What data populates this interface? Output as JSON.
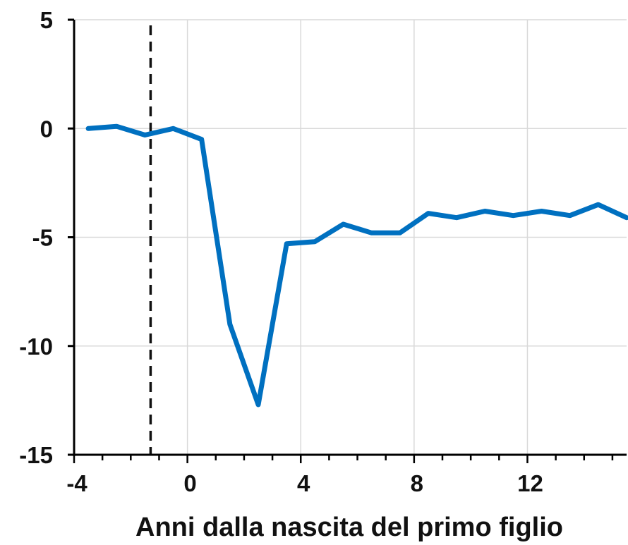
{
  "chart_data": {
    "type": "line",
    "title": "",
    "xlabel": "Anni dalla nascita del primo figlio",
    "ylabel": "",
    "xlim": [
      -4,
      15.5
    ],
    "ylim": [
      -15,
      5
    ],
    "x_ticks": [
      -4,
      0,
      4,
      8,
      12
    ],
    "y_ticks": [
      5,
      0,
      -5,
      -10,
      -15
    ],
    "grid": true,
    "legend": "none",
    "reference_line_x": -1.3,
    "series": [
      {
        "color": "#0070C0",
        "x": [
          -3.5,
          -2.5,
          -1.5,
          -0.5,
          0.5,
          1.5,
          2.5,
          3.5,
          4.5,
          5.5,
          6.5,
          7.5,
          8.5,
          9.5,
          10.5,
          11.5,
          12.5,
          13.5,
          14.5,
          15.5
        ],
        "y": [
          0.0,
          0.1,
          -0.3,
          0.0,
          -0.5,
          -9.0,
          -12.7,
          -5.3,
          -5.2,
          -4.4,
          -4.8,
          -4.8,
          -3.9,
          -4.1,
          -3.8,
          -4.0,
          -3.8,
          -4.0,
          -3.5,
          -4.1
        ]
      }
    ],
    "colors": {
      "series": "#0070C0",
      "grid": "#d9d9d9",
      "axis": "#000000"
    }
  }
}
